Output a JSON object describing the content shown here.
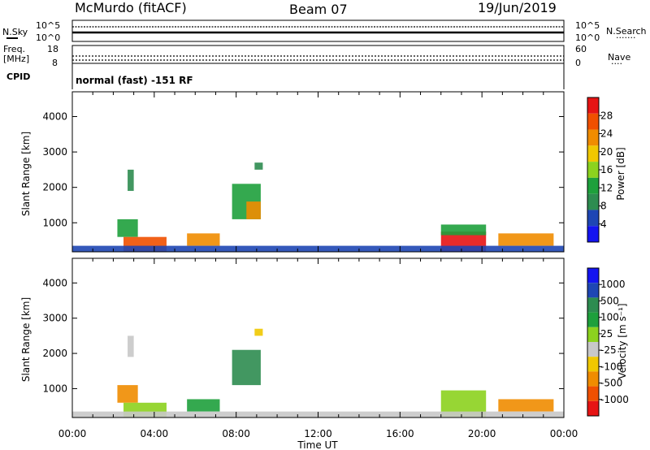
{
  "header": {
    "station": "McMurdo (fitACF)",
    "beam": "Beam 07",
    "date": "19/Jun/2019"
  },
  "status_panel": {
    "nsky_label": "N.Sky",
    "nsearch_label": "N.Search",
    "freq_label_1": "Freq.",
    "freq_label_2": "[MHz]",
    "nave_label": "Nave",
    "cpid_label": "CPID",
    "cpid_text": "normal (fast) -151 RF",
    "noise_ticks": [
      "10^5",
      "10^0"
    ],
    "noise_right_ticks": [
      "10^5",
      "10^0"
    ],
    "freq_ticks": [
      "18",
      "8"
    ],
    "nave_ticks": [
      "60",
      "0"
    ],
    "legend_dots_1": "·······",
    "legend_dots_2": "····"
  },
  "chart_data": [
    {
      "type": "heatmap",
      "name": "power",
      "ylabel": "Slant Range [km]",
      "xlabel": "",
      "x_ticks": [
        "00:00",
        "04:00",
        "08:00",
        "12:00",
        "16:00",
        "20:00",
        "00:00"
      ],
      "y_ticks": [
        "1000",
        "2000",
        "3000",
        "4000"
      ],
      "xlim": [
        0,
        24
      ],
      "ylim": [
        180,
        4700
      ],
      "colorbar": {
        "label": "Power [dB]",
        "ticks": [
          "28",
          "24",
          "20",
          "16",
          "12",
          "8",
          "4"
        ],
        "colors": [
          "#1414f0",
          "#1e46b4",
          "#2d8c50",
          "#1ea03c",
          "#8cd21e",
          "#f0c800",
          "#f08c00",
          "#f05000",
          "#e61414"
        ]
      },
      "patches": [
        {
          "t0": 2.2,
          "t1": 3.2,
          "r0": 600,
          "r1": 1100,
          "level": 3
        },
        {
          "t0": 2.5,
          "t1": 4.6,
          "r0": 180,
          "r1": 600,
          "level": 7
        },
        {
          "t0": 2.7,
          "t1": 3.0,
          "r0": 1900,
          "r1": 2500,
          "level": 2
        },
        {
          "t0": 5.6,
          "t1": 7.2,
          "r0": 350,
          "r1": 700,
          "level": 6
        },
        {
          "t0": 7.8,
          "t1": 9.2,
          "r0": 1100,
          "r1": 2100,
          "level": 3
        },
        {
          "t0": 8.5,
          "t1": 9.2,
          "r0": 1100,
          "r1": 1600,
          "level": 6
        },
        {
          "t0": 8.9,
          "t1": 9.3,
          "r0": 2500,
          "r1": 2700,
          "level": 2
        },
        {
          "t0": 18.0,
          "t1": 20.2,
          "r0": 180,
          "r1": 750,
          "level": 8
        },
        {
          "t0": 18.0,
          "t1": 20.2,
          "r0": 650,
          "r1": 950,
          "level": 3
        },
        {
          "t0": 20.8,
          "t1": 23.5,
          "r0": 350,
          "r1": 700,
          "level": 6
        },
        {
          "t0": 0.0,
          "t1": 24.0,
          "r0": 180,
          "r1": 350,
          "level": 1
        }
      ]
    },
    {
      "type": "heatmap",
      "name": "velocity",
      "ylabel": "Slant Range [km]",
      "xlabel": "Time UT",
      "x_ticks": [
        "00:00",
        "04:00",
        "08:00",
        "12:00",
        "16:00",
        "20:00",
        "00:00"
      ],
      "y_ticks": [
        "1000",
        "2000",
        "3000",
        "4000"
      ],
      "xlim": [
        0,
        24
      ],
      "ylim": [
        180,
        4700
      ],
      "colorbar": {
        "label": "Velocity [m s⁻¹]",
        "ticks": [
          "1000",
          "500",
          "100",
          "25",
          "-25",
          "-100",
          "-500",
          "-1000"
        ],
        "colors": [
          "#e61414",
          "#f05000",
          "#f08c00",
          "#f0c800",
          "#c8c8c8",
          "#8cd21e",
          "#1ea03c",
          "#2d8c50",
          "#1e46b4",
          "#1414f0"
        ]
      },
      "patches": [
        {
          "t0": 2.2,
          "t1": 3.2,
          "r0": 600,
          "r1": 1100,
          "level": 2
        },
        {
          "t0": 2.5,
          "t1": 4.6,
          "r0": 180,
          "r1": 600,
          "level": 5
        },
        {
          "t0": 2.7,
          "t1": 3.0,
          "r0": 1900,
          "r1": 2500,
          "level": 4
        },
        {
          "t0": 5.6,
          "t1": 7.2,
          "r0": 350,
          "r1": 700,
          "level": 6
        },
        {
          "t0": 7.8,
          "t1": 9.2,
          "r0": 1100,
          "r1": 2100,
          "level": 7
        },
        {
          "t0": 8.9,
          "t1": 9.3,
          "r0": 2500,
          "r1": 2700,
          "level": 3
        },
        {
          "t0": 18.0,
          "t1": 20.2,
          "r0": 180,
          "r1": 950,
          "level": 5
        },
        {
          "t0": 20.8,
          "t1": 23.5,
          "r0": 350,
          "r1": 700,
          "level": 2
        },
        {
          "t0": 0.0,
          "t1": 24.0,
          "r0": 180,
          "r1": 350,
          "level": 4
        }
      ]
    }
  ]
}
